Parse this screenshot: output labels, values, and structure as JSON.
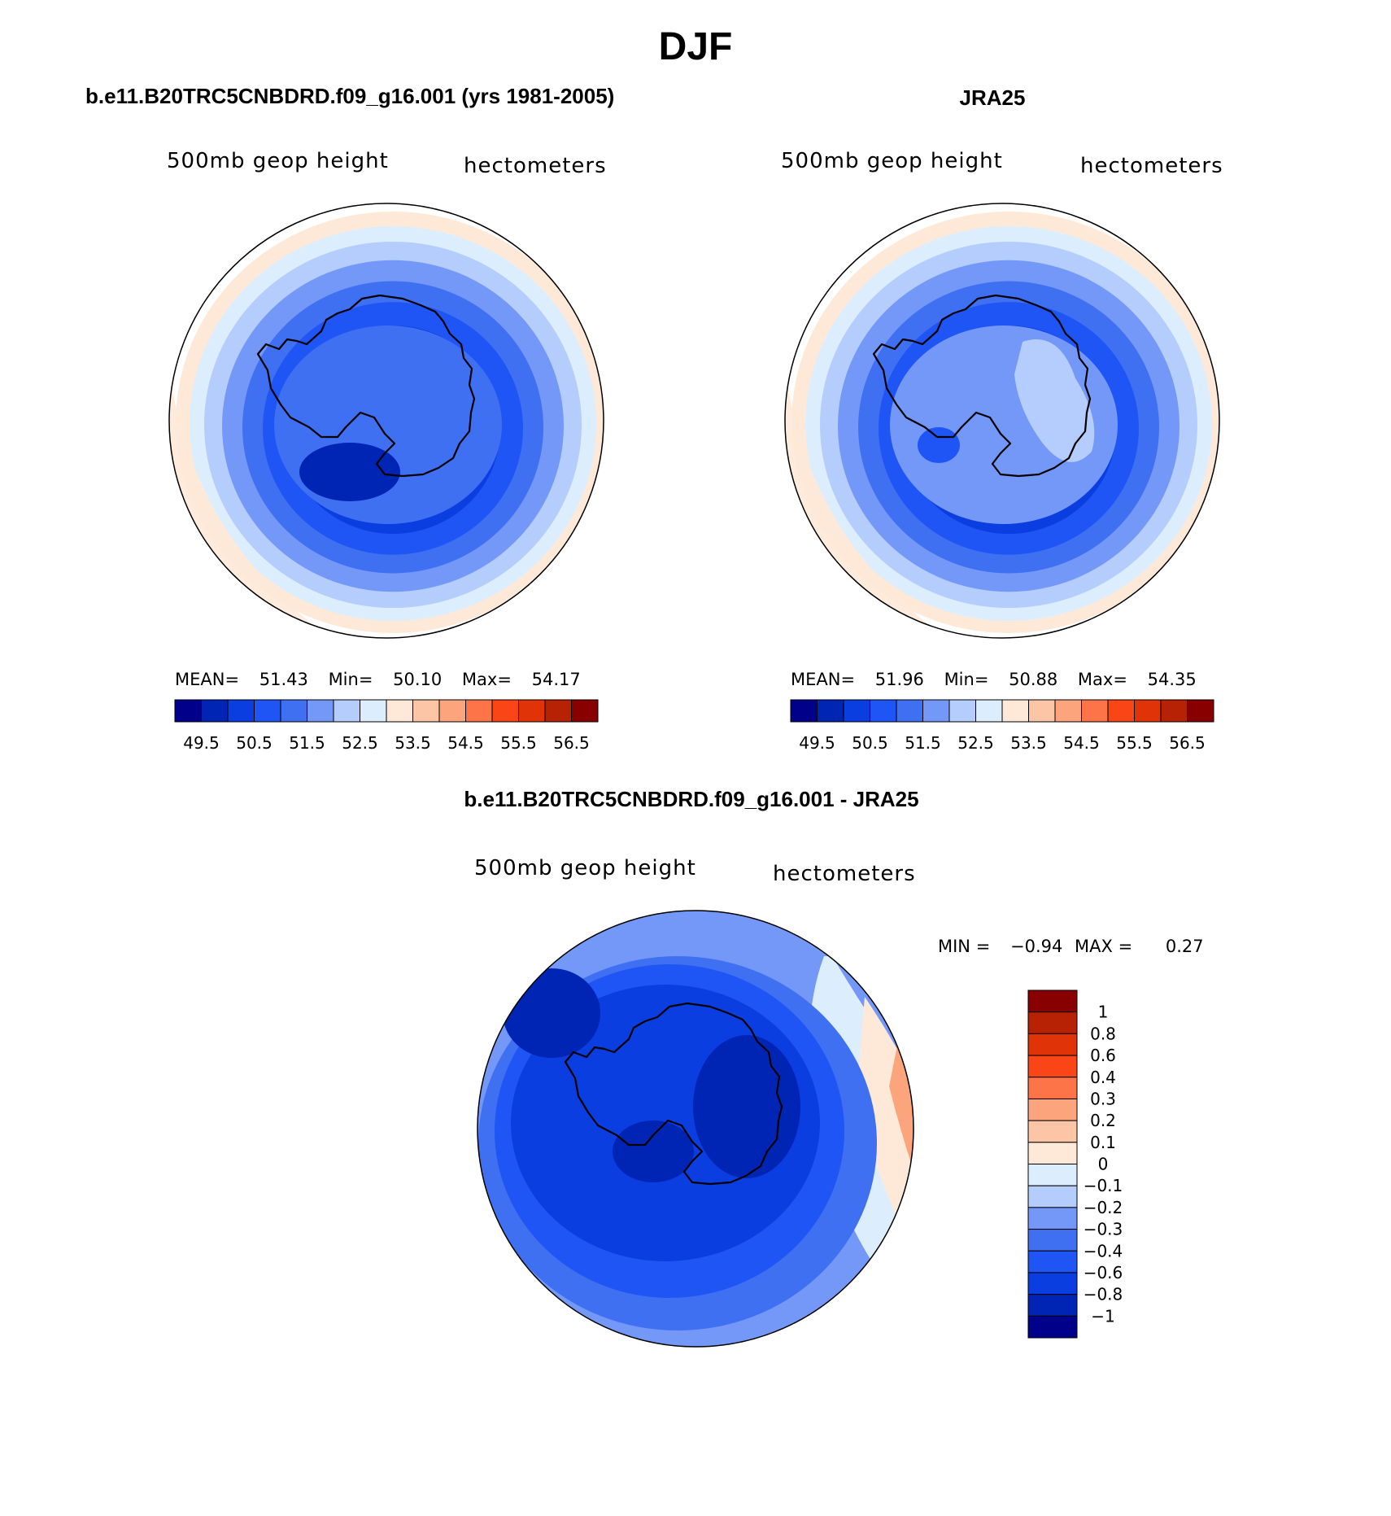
{
  "title": "DJF",
  "panels": [
    {
      "id": "model",
      "heading": "b.e11.B20TRC5CNBDRD.f09_g16.001 (yrs 1981-2005)",
      "variable": "500mb geop height",
      "units": "hectometers",
      "stats": {
        "mean_label": "MEAN=",
        "mean": "51.43",
        "min_label": "Min=",
        "min": "50.10",
        "max_label": "Max=",
        "max": "54.17"
      },
      "center_level": 4,
      "pole_level": 1
    },
    {
      "id": "obs",
      "heading": "JRA25",
      "variable": "500mb geop height",
      "units": "hectometers",
      "stats": {
        "mean_label": "MEAN=",
        "mean": "51.96",
        "min_label": "Min=",
        "min": "50.88",
        "max_label": "Max=",
        "max": "54.35"
      },
      "center_level": 5,
      "pole_level": 3
    },
    {
      "id": "diff",
      "heading": "b.e11.B20TRC5CNBDRD.f09_g16.001 - JRA25",
      "variable": "500mb geop height",
      "units": "hectometers",
      "stats": {
        "min_label": "MIN =",
        "min": "−0.94",
        "max_label": "MAX =",
        "max": "0.27"
      }
    }
  ],
  "colorbar_height": {
    "colors": [
      "#00008b",
      "#0025b5",
      "#0a3ee0",
      "#1f55f5",
      "#3f70f2",
      "#7398f7",
      "#b4cdfc",
      "#dceefd",
      "#fee9d8",
      "#fcc6a6",
      "#fca47c",
      "#fc7448",
      "#fa4516",
      "#e03308",
      "#b82204",
      "#880000"
    ],
    "tick_labels": [
      "49.5",
      "50.5",
      "51.5",
      "52.5",
      "53.5",
      "54.5",
      "55.5",
      "56.5"
    ]
  },
  "colorbar_diff": {
    "colors": [
      "#880000",
      "#b82204",
      "#e03308",
      "#fa4516",
      "#fc7448",
      "#fca47c",
      "#fcc6a6",
      "#fee9d8",
      "#dceefd",
      "#b4cdfc",
      "#7398f7",
      "#3f70f2",
      "#1f55f5",
      "#0a3ee0",
      "#0025b5",
      "#00008b"
    ],
    "tick_labels": [
      "1",
      "0.8",
      "0.6",
      "0.4",
      "0.3",
      "0.2",
      "0.1",
      "0",
      "−0.1",
      "−0.2",
      "−0.3",
      "−0.4",
      "−0.6",
      "−0.8",
      "−1"
    ]
  },
  "chart_data": [
    {
      "type": "heatmap",
      "title": "b.e11.B20TRC5CNBDRD.f09_g16.001 (yrs 1981-2005)",
      "projection": "south polar stereographic",
      "variable": "500mb geop height",
      "units": "hectometers",
      "levels": [
        49.5,
        50.0,
        50.5,
        51.0,
        51.5,
        52.0,
        52.5,
        53.0,
        53.5,
        54.0,
        54.5,
        55.0,
        55.5,
        56.0,
        56.5
      ],
      "mean": 51.43,
      "min": 50.1,
      "max": 54.17
    },
    {
      "type": "heatmap",
      "title": "JRA25",
      "projection": "south polar stereographic",
      "variable": "500mb geop height",
      "units": "hectometers",
      "levels": [
        49.5,
        50.0,
        50.5,
        51.0,
        51.5,
        52.0,
        52.5,
        53.0,
        53.5,
        54.0,
        54.5,
        55.0,
        55.5,
        56.0,
        56.5
      ],
      "mean": 51.96,
      "min": 50.88,
      "max": 54.35
    },
    {
      "type": "heatmap",
      "title": "b.e11.B20TRC5CNBDRD.f09_g16.001 - JRA25",
      "projection": "south polar stereographic",
      "variable": "500mb geop height",
      "units": "hectometers",
      "levels": [
        -1,
        -0.8,
        -0.6,
        -0.4,
        -0.3,
        -0.2,
        -0.1,
        0,
        0.1,
        0.2,
        0.3,
        0.4,
        0.6,
        0.8,
        1
      ],
      "min": -0.94,
      "max": 0.27
    }
  ]
}
